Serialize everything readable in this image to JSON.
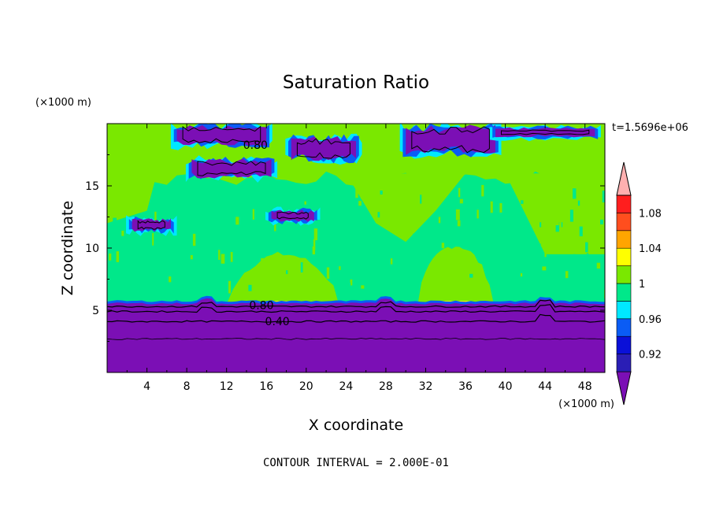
{
  "chart_data": {
    "type": "heatmap",
    "subtype": "filled contour",
    "title": "Saturation Ratio",
    "xlabel": "X coordinate",
    "ylabel": "Z coordinate",
    "x_unit": "(×1000 m)",
    "y_unit": "(×1000 m)",
    "time_label": "t=1.5696e+06",
    "footer": "CONTOUR INTERVAL = 2.000E-01",
    "xlim": [
      0,
      50
    ],
    "ylim": [
      0,
      20
    ],
    "x_ticks": [
      4,
      8,
      12,
      16,
      20,
      24,
      28,
      32,
      36,
      40,
      44,
      48
    ],
    "y_ticks": [
      5,
      10,
      15
    ],
    "colorbar": {
      "levels": [
        0.9,
        0.92,
        0.94,
        0.96,
        0.98,
        1.0,
        1.02,
        1.04,
        1.06,
        1.08,
        1.1
      ],
      "tick_labels": [
        "0.92",
        "0.96",
        "1",
        "1.04",
        "1.08"
      ],
      "colors": [
        "#7b0fb5",
        "#2a1eb5",
        "#0a10d8",
        "#0a5cf5",
        "#00e8ff",
        "#00e88a",
        "#7ae800",
        "#ffff00",
        "#ffa500",
        "#ff4e1e",
        "#ff1e1e",
        "#ffb0b0"
      ]
    },
    "line_contour_labels": [
      {
        "text": "0.80",
        "x": 14.9,
        "y": 18.3
      },
      {
        "text": "0.80",
        "x": 15.5,
        "y": 5.4
      },
      {
        "text": "0.40",
        "x": 17.1,
        "y": 4.1
      }
    ],
    "regions": {
      "lower_layer": {
        "value": "<0.92",
        "z_range": [
          0,
          5.6
        ]
      },
      "bottom_contours_z": [
        5.3,
        4.9,
        4.1,
        2.7
      ],
      "mid_layer": {
        "value": "0.98–1.00",
        "z_range": [
          5.6,
          20
        ]
      },
      "supersaturated_columns": [
        {
          "x_range": [
            12.1,
            23.3
          ],
          "z_top": 9.5,
          "value": "1.00–1.02"
        },
        {
          "x_range": [
            31.2,
            38.8
          ],
          "z_top": 10.2,
          "value": "1.00–1.02"
        }
      ],
      "upper_layer": {
        "value": "1.00–1.02",
        "z_range": [
          15.5,
          20
        ]
      },
      "dry_patches_upper": [
        {
          "x": [
            7,
            16
          ],
          "z": [
            18.2,
            20
          ],
          "value": "<0.92"
        },
        {
          "x": [
            8.5,
            16.5
          ],
          "z": [
            15.6,
            17.2
          ],
          "value": "<0.92"
        },
        {
          "x": [
            18.5,
            25
          ],
          "z": [
            17,
            19
          ],
          "value": "<0.92"
        },
        {
          "x": [
            30,
            39
          ],
          "z": [
            17.4,
            20
          ],
          "value": "<0.92"
        },
        {
          "x": [
            39,
            49
          ],
          "z": [
            18.9,
            19.7
          ],
          "value": "<0.92"
        },
        {
          "x": [
            16.5,
            20.8
          ],
          "z": [
            12.1,
            13.1
          ],
          "value": "<0.92"
        },
        {
          "x": [
            2.5,
            6.4
          ],
          "z": [
            11.3,
            12.4
          ],
          "value": "<0.92"
        }
      ]
    }
  }
}
